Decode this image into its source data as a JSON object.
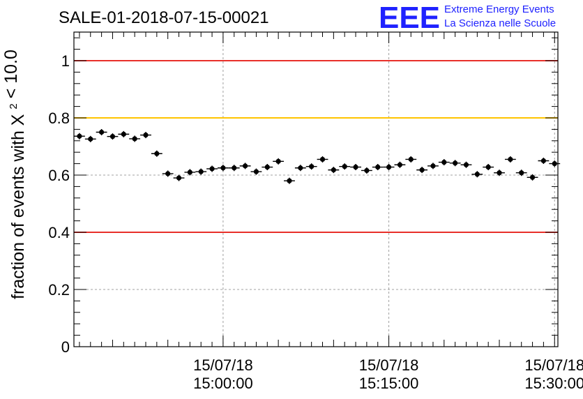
{
  "chart_data": {
    "type": "scatter",
    "title": "SALE-01-2018-07-15-00021",
    "logo": {
      "mark": "EEE",
      "line1": "Extreme Energy Events",
      "line2": "La Scienza nelle Scuole"
    },
    "xlabel": "",
    "ylabel": "fraction of events with",
    "ylabel_symbol": "X",
    "ylabel_sup": "2",
    "ylabel_suffix": "< 10.0",
    "ylim": [
      0,
      1.1
    ],
    "y_ticks": [
      {
        "value": 0,
        "label": "0"
      },
      {
        "value": 0.2,
        "label": "0.2"
      },
      {
        "value": 0.4,
        "label": "0.4"
      },
      {
        "value": 0.6,
        "label": "0.6"
      },
      {
        "value": 0.8,
        "label": "0.8"
      },
      {
        "value": 1.0,
        "label": "1"
      }
    ],
    "x_ticks": [
      {
        "minute": 15,
        "date": "15/07/18",
        "time": "15:00:00"
      },
      {
        "minute": 30,
        "date": "15/07/18",
        "time": "15:15:00"
      },
      {
        "minute": 45,
        "date": "15/07/18",
        "time": "15:30:00"
      }
    ],
    "xlim": [
      1.5,
      45.3
    ],
    "grid": true,
    "reference_lines": [
      {
        "y": 1.0,
        "color": "#e8302a"
      },
      {
        "y": 0.8,
        "color": "#ffc400"
      },
      {
        "y": 0.4,
        "color": "#e8302a"
      }
    ],
    "series": [
      {
        "x": [
          2,
          3,
          4,
          5,
          6,
          7,
          8,
          9,
          10,
          11,
          12,
          13,
          14,
          15,
          16,
          17,
          18,
          19,
          20,
          21,
          22,
          23,
          24,
          25,
          26,
          27,
          28,
          29,
          30,
          31,
          32,
          33,
          34,
          35,
          36,
          37,
          38,
          39,
          40,
          41,
          42,
          43,
          44,
          45
        ],
        "y": [
          0.736,
          0.726,
          0.75,
          0.735,
          0.743,
          0.727,
          0.74,
          0.675,
          0.605,
          0.59,
          0.61,
          0.612,
          0.622,
          0.625,
          0.625,
          0.632,
          0.612,
          0.628,
          0.648,
          0.58,
          0.625,
          0.63,
          0.655,
          0.618,
          0.63,
          0.628,
          0.616,
          0.628,
          0.628,
          0.636,
          0.655,
          0.618,
          0.632,
          0.645,
          0.642,
          0.636,
          0.603,
          0.628,
          0.608,
          0.655,
          0.608,
          0.592,
          0.65,
          0.64
        ],
        "yerr": 0.011,
        "color": "#000000"
      }
    ]
  }
}
